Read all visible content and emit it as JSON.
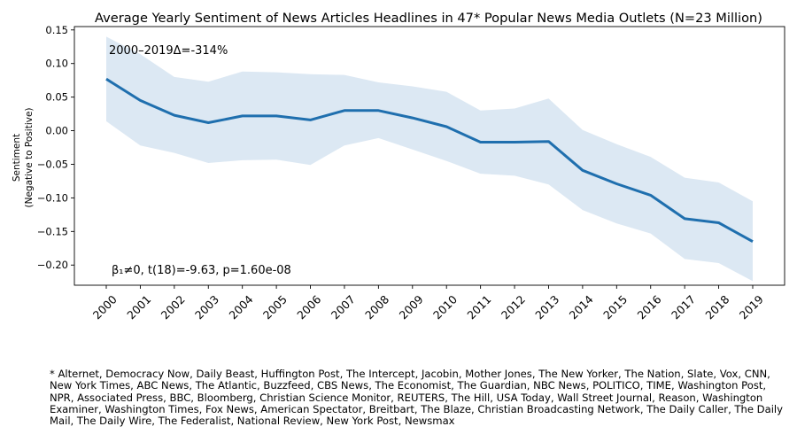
{
  "chart_data": {
    "type": "line",
    "title": "Average Yearly Sentiment of News Articles Headlines in 47* Popular News Media Outlets (N=23 Million)",
    "xlabel": "",
    "ylabel": "Sentiment",
    "ylabel_sub": "(Negative to Positive)",
    "x": [
      2000,
      2001,
      2002,
      2003,
      2004,
      2005,
      2006,
      2007,
      2008,
      2009,
      2010,
      2011,
      2012,
      2013,
      2014,
      2015,
      2016,
      2017,
      2018,
      2019
    ],
    "series": [
      {
        "color": "#1f6fae",
        "values": [
          0.077,
          0.045,
          0.023,
          0.012,
          0.022,
          0.022,
          0.016,
          0.03,
          0.03,
          0.019,
          0.006,
          -0.017,
          -0.017,
          -0.016,
          -0.059,
          -0.079,
          -0.096,
          -0.131,
          -0.137,
          -0.165
        ],
        "upper": [
          0.14,
          0.114,
          0.08,
          0.073,
          0.088,
          0.087,
          0.084,
          0.083,
          0.072,
          0.066,
          0.058,
          0.03,
          0.033,
          0.048,
          0.001,
          -0.02,
          -0.039,
          -0.07,
          -0.077,
          -0.105
        ],
        "lower": [
          0.014,
          -0.022,
          -0.033,
          -0.048,
          -0.044,
          -0.043,
          -0.051,
          -0.022,
          -0.011,
          -0.028,
          -0.045,
          -0.064,
          -0.067,
          -0.08,
          -0.118,
          -0.138,
          -0.153,
          -0.191,
          -0.197,
          -0.224
        ],
        "band_color": "#dce8f3"
      }
    ],
    "ylim": [
      -0.23,
      0.155
    ],
    "yticks": [
      0.15,
      0.1,
      0.05,
      0.0,
      -0.05,
      -0.1,
      -0.15,
      -0.2
    ],
    "ytick_labels": [
      "0.15",
      "0.10",
      "0.05",
      "0.00",
      "−0.05",
      "−0.10",
      "−0.15",
      "−0.20"
    ],
    "xtick_labels": [
      "2000",
      "2001",
      "2002",
      "2003",
      "2004",
      "2005",
      "2006",
      "2007",
      "2008",
      "2009",
      "2010",
      "2011",
      "2012",
      "2013",
      "2014",
      "2015",
      "2016",
      "2017",
      "2018",
      "2019"
    ],
    "grid": false,
    "annotations": {
      "delta": "2000–2019Δ=-314%",
      "stats": "β₁≠0, t(18)=-9.63, p=1.60e-08"
    }
  },
  "footnote": "* Alternet, Democracy Now, Daily Beast, Huffington Post, The Intercept, Jacobin, Mother Jones, The New Yorker, The Nation, Slate, Vox, CNN, New York Times, ABC News, The Atlantic, Buzzfeed, CBS News, The Economist, The Guardian, NBC News, POLITICO, TIME, Washington Post, NPR, Associated Press, BBC, Bloomberg, Christian Science Monitor, REUTERS, The Hill, USA Today, Wall Street Journal, Reason, Washington Examiner, Washington Times, Fox News, American Spectator, Breitbart, The Blaze, Christian Broadcasting Network, The Daily Caller, The Daily Mail, The Daily Wire, The Federalist, National Review, New York Post, Newsmax"
}
